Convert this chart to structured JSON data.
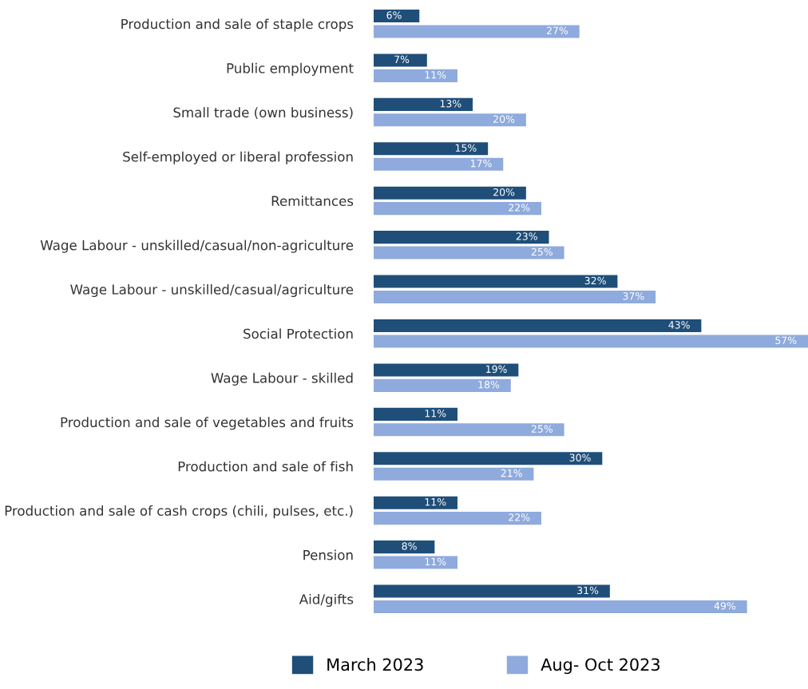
{
  "chart_data": {
    "type": "bar",
    "orientation": "horizontal",
    "categories": [
      "Production and sale of staple crops",
      "Public employment",
      "Small trade (own business)",
      "Self-employed or liberal profession",
      "Remittances",
      "Wage Labour - unskilled/casual/non-agriculture",
      "Wage Labour - unskilled/casual/agriculture",
      "Social Protection",
      "Wage Labour - skilled",
      "Production and sale of vegetables and fruits",
      "Production and sale of fish",
      "Production and sale of cash crops (chili, pulses, etc.)",
      "Pension",
      "Aid/gifts"
    ],
    "series": [
      {
        "name": "March 2023",
        "color": "#1f4e79",
        "values": [
          6,
          7,
          13,
          15,
          20,
          23,
          32,
          43,
          19,
          11,
          30,
          11,
          8,
          31
        ],
        "value_labels": [
          "6%",
          "7%",
          "13%",
          "15%",
          "20%",
          "23%",
          "32%",
          "43%",
          "19%",
          "11%",
          "30%",
          "11%",
          "8%",
          "31%"
        ]
      },
      {
        "name": "Aug- Oct 2023",
        "color": "#8faadc",
        "values": [
          27,
          11,
          20,
          17,
          22,
          25,
          37,
          57,
          18,
          25,
          21,
          22,
          11,
          49
        ],
        "value_labels": [
          "27%",
          "11%",
          "20%",
          "17%",
          "22%",
          "25%",
          "37%",
          "57%",
          "18%",
          "25%",
          "21%",
          "22%",
          "11%",
          "49%"
        ]
      }
    ],
    "legend": "bottom"
  }
}
